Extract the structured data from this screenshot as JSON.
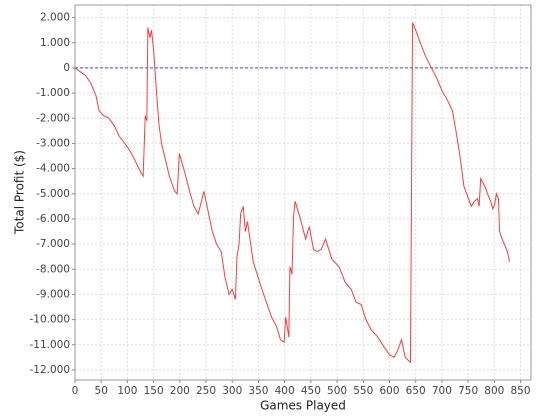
{
  "chart_data": {
    "type": "line",
    "x_label": "Games Played",
    "y_label": "Total Profit ($)",
    "x": [
      0,
      10,
      20,
      30,
      40,
      46,
      55,
      65,
      75,
      84,
      95,
      105,
      115,
      122,
      127,
      130,
      134,
      137,
      139,
      143,
      146,
      150,
      155,
      160,
      165,
      172,
      180,
      190,
      195,
      199,
      210,
      220,
      227,
      235,
      240,
      246,
      252,
      262,
      270,
      279,
      286,
      294,
      300,
      306,
      309,
      313,
      316,
      321,
      325,
      329,
      340,
      355,
      365,
      375,
      385,
      392,
      399,
      402,
      405,
      408,
      410,
      414,
      417,
      420,
      430,
      440,
      447,
      455,
      462,
      470,
      478,
      490,
      504,
      515,
      527,
      536,
      546,
      555,
      565,
      578,
      590,
      600,
      609,
      616,
      623,
      630,
      640,
      644,
      650,
      657,
      668,
      680,
      690,
      700,
      711,
      720,
      726,
      733,
      737,
      742,
      749,
      756,
      762,
      768,
      771,
      774,
      782,
      787,
      793,
      797,
      801,
      804,
      808,
      810,
      815,
      819,
      825,
      829
    ],
    "values": [
      0,
      -150,
      -300,
      -600,
      -1100,
      -1700,
      -1900,
      -2000,
      -2300,
      -2700,
      -3000,
      -3300,
      -3700,
      -4000,
      -4200,
      -4300,
      -1900,
      -2100,
      1600,
      1200,
      1500,
      700,
      -800,
      -2200,
      -3000,
      -3600,
      -4300,
      -4900,
      -5000,
      -3400,
      -4200,
      -5000,
      -5500,
      -5800,
      -5400,
      -4900,
      -5500,
      -6500,
      -7000,
      -7300,
      -8300,
      -9000,
      -8800,
      -9200,
      -7500,
      -7000,
      -5800,
      -5500,
      -6500,
      -6100,
      -7700,
      -8700,
      -9300,
      -9900,
      -10300,
      -10800,
      -10900,
      -9900,
      -10300,
      -10700,
      -7900,
      -8200,
      -5900,
      -5300,
      -6000,
      -6800,
      -6300,
      -7200,
      -7300,
      -7200,
      -6800,
      -7600,
      -7900,
      -8500,
      -8800,
      -9300,
      -9400,
      -10000,
      -10400,
      -10700,
      -11100,
      -11400,
      -11500,
      -11200,
      -10800,
      -11500,
      -11700,
      1800,
      1500,
      1100,
      500,
      0,
      -400,
      -900,
      -1300,
      -1700,
      -2400,
      -3300,
      -3900,
      -4700,
      -5100,
      -5500,
      -5300,
      -5200,
      -5500,
      -4400,
      -4700,
      -5000,
      -5300,
      -5600,
      -5400,
      -5000,
      -5200,
      -6500,
      -6800,
      -7000,
      -7300,
      -7700
    ],
    "color": "#ff3b3b",
    "reference_line": 0,
    "reference_color": "#4a4ad0",
    "xlim": [
      0,
      870
    ],
    "xticks": [
      0,
      50,
      100,
      150,
      200,
      250,
      300,
      350,
      400,
      450,
      500,
      550,
      600,
      650,
      700,
      750,
      800,
      850
    ],
    "ylim": [
      -12400,
      2500
    ],
    "yticks": [
      {
        "value": 2000,
        "label": "2.000"
      },
      {
        "value": 1000,
        "label": "1.000"
      },
      0,
      {
        "value": -1000,
        "label": "-1.000"
      },
      {
        "value": -2000,
        "label": "-2.000"
      },
      {
        "value": -3000,
        "label": "-3.000"
      },
      {
        "value": -4000,
        "label": "-4.000"
      },
      {
        "value": -5000,
        "label": "-5.000"
      },
      {
        "value": -6000,
        "label": "-6.000"
      },
      {
        "value": -7000,
        "label": "-7.000"
      },
      {
        "value": -8000,
        "label": "-8.000"
      },
      {
        "value": -9000,
        "label": "-9.000"
      },
      {
        "value": -10000,
        "label": "-10.000"
      },
      {
        "value": -11000,
        "label": "-11.000"
      },
      {
        "value": -12000,
        "label": "-12.000"
      }
    ],
    "grid": true
  }
}
